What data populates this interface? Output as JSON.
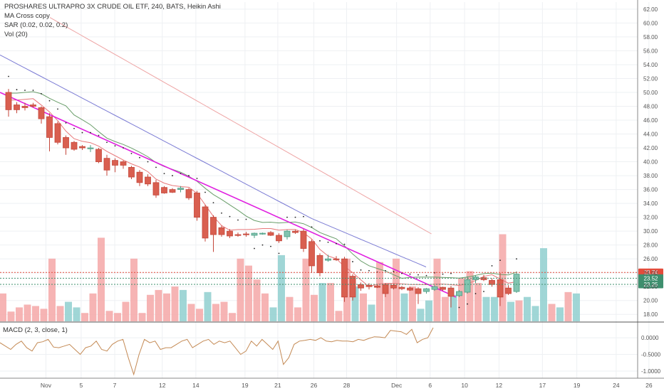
{
  "legend": {
    "title": "PROSHARES ULTRAPRO 3X CRUDE OIL ETF, 240, BATS, Heikin Ashi",
    "ma": "MA Cross copy",
    "sar": "SAR (0.02, 0.02, 0.2)",
    "vol": "Vol (20)"
  },
  "macd_label": "MACD (2, 3, close, 1)",
  "colors": {
    "up": "#4a9c82",
    "up_fill": "#82c4b0",
    "down": "#c4463a",
    "down_fill": "#d95f50",
    "vol_up": "#8fcfcf",
    "vol_down": "#f5a7a7",
    "ma_fast": "#e8787a",
    "ma_mid": "#6a9e6a",
    "ma_slow": "#7b7bd4",
    "ma_long": "#eea3a3",
    "trend": "#e020e0",
    "macd": "#c48a55",
    "badge_red": "#e34b3b",
    "badge_green": "#3e8f6e"
  },
  "chart_data": {
    "type": "candlestick",
    "y_ticks": [
      "62.00",
      "60.00",
      "58.00",
      "56.00",
      "54.00",
      "52.00",
      "50.00",
      "48.00",
      "46.00",
      "44.00",
      "42.00",
      "40.00",
      "38.00",
      "36.00",
      "34.00",
      "32.00",
      "30.00",
      "28.00",
      "26.00",
      "24.00",
      "22.00",
      "20.00",
      "18.00"
    ],
    "price_range": [
      17,
      62.5
    ],
    "x_labels": [
      {
        "label": "Nov",
        "i": 4.3
      },
      {
        "label": "5",
        "i": 8.6
      },
      {
        "label": "7",
        "i": 12.7
      },
      {
        "label": "12",
        "i": 18.5
      },
      {
        "label": "14",
        "i": 22.6
      },
      {
        "label": "19",
        "i": 28.6
      },
      {
        "label": "21",
        "i": 32.6
      },
      {
        "label": "26",
        "i": 37.0
      },
      {
        "label": "28",
        "i": 41.0
      },
      {
        "label": "Dec",
        "i": 47.1
      },
      {
        "label": "6",
        "i": 51.2
      },
      {
        "label": "10",
        "i": 55.4
      },
      {
        "label": "12",
        "i": 59.6
      },
      {
        "label": "17",
        "i": 64.9
      },
      {
        "label": "19",
        "i": 69.1
      },
      {
        "label": "24",
        "i": 73.9
      },
      {
        "label": "26",
        "i": 77.9
      }
    ],
    "candles": [
      {
        "o": 50.0,
        "h": 50.5,
        "l": 46.5,
        "c": 47.5
      },
      {
        "o": 48.2,
        "h": 48.6,
        "l": 47.0,
        "c": 47.5
      },
      {
        "o": 48.0,
        "h": 48.5,
        "l": 47.4,
        "c": 47.8
      },
      {
        "o": 48.2,
        "h": 48.5,
        "l": 47.8,
        "c": 48.0
      },
      {
        "o": 47.8,
        "h": 48.0,
        "l": 45.5,
        "c": 46.2
      },
      {
        "o": 46.5,
        "h": 47.0,
        "l": 41.5,
        "c": 43.5
      },
      {
        "o": 45.5,
        "h": 45.8,
        "l": 42.5,
        "c": 42.8
      },
      {
        "o": 43.5,
        "h": 43.8,
        "l": 41.0,
        "c": 42.0
      },
      {
        "o": 42.8,
        "h": 43.0,
        "l": 41.6,
        "c": 41.8
      },
      {
        "o": 42.2,
        "h": 42.4,
        "l": 41.7,
        "c": 42.0
      },
      {
        "o": 42.0,
        "h": 42.4,
        "l": 41.4,
        "c": 42.0
      },
      {
        "o": 41.8,
        "h": 42.0,
        "l": 39.8,
        "c": 40.0
      },
      {
        "o": 40.5,
        "h": 41.0,
        "l": 38.0,
        "c": 38.8
      },
      {
        "o": 40.2,
        "h": 40.5,
        "l": 38.5,
        "c": 39.5
      },
      {
        "o": 40.0,
        "h": 40.2,
        "l": 39.0,
        "c": 39.5
      },
      {
        "o": 39.2,
        "h": 39.4,
        "l": 37.5,
        "c": 37.8
      },
      {
        "o": 38.5,
        "h": 38.8,
        "l": 36.5,
        "c": 37.0
      },
      {
        "o": 37.8,
        "h": 38.2,
        "l": 36.5,
        "c": 36.8
      },
      {
        "o": 37.0,
        "h": 37.4,
        "l": 34.8,
        "c": 35.2
      },
      {
        "o": 36.3,
        "h": 36.5,
        "l": 35.4,
        "c": 35.5
      },
      {
        "o": 36.0,
        "h": 36.2,
        "l": 35.5,
        "c": 35.6
      },
      {
        "o": 36.0,
        "h": 36.5,
        "l": 35.6,
        "c": 36.2
      },
      {
        "o": 36.0,
        "h": 36.2,
        "l": 34.5,
        "c": 34.8
      },
      {
        "o": 35.5,
        "h": 35.8,
        "l": 31.5,
        "c": 32.0
      },
      {
        "o": 33.5,
        "h": 33.8,
        "l": 28.5,
        "c": 29.0
      },
      {
        "o": 32.0,
        "h": 32.3,
        "l": 27.0,
        "c": 29.5
      },
      {
        "o": 30.5,
        "h": 30.8,
        "l": 29.2,
        "c": 29.5
      },
      {
        "o": 30.0,
        "h": 30.3,
        "l": 29.0,
        "c": 29.3
      },
      {
        "o": 29.5,
        "h": 29.8,
        "l": 29.2,
        "c": 29.4
      },
      {
        "o": 29.6,
        "h": 29.9,
        "l": 29.2,
        "c": 29.5
      },
      {
        "o": 29.4,
        "h": 29.8,
        "l": 29.0,
        "c": 29.7
      },
      {
        "o": 29.6,
        "h": 29.8,
        "l": 29.5,
        "c": 29.7
      },
      {
        "o": 29.8,
        "h": 30.0,
        "l": 29.3,
        "c": 29.4
      },
      {
        "o": 29.4,
        "h": 29.7,
        "l": 28.3,
        "c": 28.6
      },
      {
        "o": 29.2,
        "h": 30.2,
        "l": 28.8,
        "c": 30.0
      },
      {
        "o": 30.0,
        "h": 30.2,
        "l": 29.6,
        "c": 29.8
      },
      {
        "o": 30.0,
        "h": 30.3,
        "l": 27.0,
        "c": 27.5
      },
      {
        "o": 28.5,
        "h": 28.8,
        "l": 24.0,
        "c": 25.0
      },
      {
        "o": 26.5,
        "h": 26.8,
        "l": 23.5,
        "c": 24.0
      },
      {
        "o": 25.8,
        "h": 26.6,
        "l": 25.6,
        "c": 26.0
      },
      {
        "o": 26.0,
        "h": 26.4,
        "l": 25.7,
        "c": 25.9
      },
      {
        "o": 26.0,
        "h": 26.3,
        "l": 19.8,
        "c": 20.5
      },
      {
        "o": 23.5,
        "h": 23.8,
        "l": 20.0,
        "c": 20.5
      },
      {
        "o": 22.3,
        "h": 22.6,
        "l": 21.4,
        "c": 21.8
      },
      {
        "o": 22.2,
        "h": 22.5,
        "l": 21.6,
        "c": 22.0
      },
      {
        "o": 22.1,
        "h": 22.3,
        "l": 21.8,
        "c": 21.9
      },
      {
        "o": 22.3,
        "h": 22.5,
        "l": 20.5,
        "c": 21.0
      },
      {
        "o": 22.2,
        "h": 22.4,
        "l": 21.6,
        "c": 21.8
      },
      {
        "o": 21.9,
        "h": 22.1,
        "l": 21.5,
        "c": 21.7
      },
      {
        "o": 21.8,
        "h": 22.0,
        "l": 21.4,
        "c": 21.5
      },
      {
        "o": 21.7,
        "h": 21.9,
        "l": 19.5,
        "c": 21.0
      },
      {
        "o": 21.3,
        "h": 21.8,
        "l": 21.0,
        "c": 21.7
      },
      {
        "o": 21.6,
        "h": 22.2,
        "l": 21.4,
        "c": 22.0
      },
      {
        "o": 21.9,
        "h": 22.0,
        "l": 21.4,
        "c": 21.6
      },
      {
        "o": 21.8,
        "h": 22.1,
        "l": 19.0,
        "c": 20.6
      },
      {
        "o": 20.7,
        "h": 21.5,
        "l": 20.5,
        "c": 21.3
      },
      {
        "o": 21.2,
        "h": 23.5,
        "l": 21.0,
        "c": 23.0
      },
      {
        "o": 23.0,
        "h": 23.6,
        "l": 22.5,
        "c": 23.4
      },
      {
        "o": 23.3,
        "h": 23.7,
        "l": 22.8,
        "c": 23.0
      },
      {
        "o": 22.9,
        "h": 23.2,
        "l": 22.0,
        "c": 22.3
      },
      {
        "o": 23.0,
        "h": 24.0,
        "l": 19.2,
        "c": 20.5
      },
      {
        "o": 21.8,
        "h": 22.2,
        "l": 20.8,
        "c": 21.0
      },
      {
        "o": 21.3,
        "h": 24.2,
        "l": 21.1,
        "c": 23.8
      }
    ],
    "volumes": [
      [
        0.4,
        "d"
      ],
      [
        0.14,
        "d"
      ],
      [
        0.2,
        "d"
      ],
      [
        0.24,
        "d"
      ],
      [
        0.22,
        "d"
      ],
      [
        0.18,
        "d"
      ],
      [
        0.9,
        "d"
      ],
      [
        0.22,
        "d"
      ],
      [
        0.28,
        "u"
      ],
      [
        0.2,
        "u"
      ],
      [
        0.12,
        "d"
      ],
      [
        0.4,
        "d"
      ],
      [
        1.2,
        "d"
      ],
      [
        0.15,
        "d"
      ],
      [
        0.12,
        "d"
      ],
      [
        0.28,
        "d"
      ],
      [
        0.9,
        "d"
      ],
      [
        0.12,
        "d"
      ],
      [
        0.38,
        "d"
      ],
      [
        0.45,
        "d"
      ],
      [
        0.4,
        "d"
      ],
      [
        0.5,
        "d"
      ],
      [
        0.45,
        "u"
      ],
      [
        0.25,
        "d"
      ],
      [
        0.18,
        "d"
      ],
      [
        0.42,
        "u"
      ],
      [
        0.25,
        "d"
      ],
      [
        0.28,
        "d"
      ],
      [
        0.12,
        "d"
      ],
      [
        0.9,
        "d"
      ],
      [
        0.8,
        "d"
      ],
      [
        0.6,
        "d"
      ],
      [
        0.4,
        "d"
      ],
      [
        0.2,
        "u"
      ],
      [
        0.95,
        "u"
      ],
      [
        0.35,
        "d"
      ],
      [
        0.2,
        "d"
      ],
      [
        0.9,
        "d"
      ],
      [
        0.38,
        "d"
      ],
      [
        0.55,
        "u"
      ],
      [
        0.55,
        "d"
      ],
      [
        0.15,
        "d"
      ],
      [
        0.9,
        "d"
      ],
      [
        0.5,
        "u"
      ],
      [
        0.4,
        "d"
      ],
      [
        0.24,
        "u"
      ],
      [
        0.85,
        "d"
      ],
      [
        0.55,
        "d"
      ],
      [
        0.9,
        "d"
      ],
      [
        0.4,
        "u"
      ],
      [
        0.5,
        "d"
      ],
      [
        0.18,
        "u"
      ],
      [
        0.3,
        "u"
      ],
      [
        0.9,
        "d"
      ],
      [
        0.35,
        "d"
      ],
      [
        0.38,
        "u"
      ],
      [
        0.62,
        "d"
      ],
      [
        0.72,
        "d"
      ],
      [
        0.55,
        "d"
      ],
      [
        0.35,
        "u"
      ],
      [
        0.35,
        "u"
      ],
      [
        1.25,
        "d"
      ],
      [
        0.28,
        "u"
      ],
      [
        0.3,
        "d"
      ],
      [
        0.35,
        "u"
      ],
      [
        0.22,
        "u"
      ],
      [
        1.05,
        "u"
      ],
      [
        0.25,
        "d"
      ],
      [
        0.2,
        "u"
      ],
      [
        0.42,
        "d"
      ],
      [
        0.4,
        "u"
      ]
    ],
    "macd_ticks": [
      "0.0000",
      "-0.5000",
      "-1.0000"
    ],
    "macd_range": [
      -1.15,
      0.3
    ],
    "macd": [
      -0.15,
      -0.25,
      -0.35,
      -0.2,
      -0.1,
      -0.3,
      -0.4,
      -0.15,
      -0.12,
      -0.05,
      -0.28,
      -0.3,
      -0.25,
      -0.2,
      -0.35,
      -0.5,
      -0.3,
      -0.25,
      -0.1,
      -0.35,
      -0.4,
      -0.2,
      -0.1,
      -0.05,
      -0.6,
      -1.1,
      -0.5,
      -0.05,
      -0.15,
      -0.1,
      -0.35,
      -0.3,
      -0.3,
      -0.2,
      -0.1,
      -0.05,
      -0.3,
      -0.2,
      -0.1,
      -0.05,
      -0.2,
      -0.1,
      -0.15,
      -0.1,
      -0.3,
      -0.5,
      -0.4,
      -0.1,
      -0.25,
      -0.05,
      -0.2,
      -0.35,
      -0.1,
      -0.8,
      -0.6,
      -0.2,
      -0.1,
      -0.08,
      -0.05,
      -0.08,
      0.0,
      -0.1,
      -0.12,
      -0.08,
      -0.1,
      -0.1,
      -0.12,
      -0.05,
      -0.08,
      -0.02,
      0.03,
      0.02,
      0.0,
      0.22,
      0.2,
      0.18,
      0.1,
      0.25,
      -0.15,
      -0.05,
      0.0,
      0.3
    ],
    "trendline": [
      [
        0,
        50.0
      ],
      [
        79.5,
        20.5
      ]
    ],
    "ma_long": [
      [
        31,
        48.0
      ],
      [
        40,
        46.0
      ],
      [
        50,
        44.0
      ],
      [
        60,
        42.0
      ],
      [
        70,
        40.0
      ],
      [
        80,
        38.0
      ],
      [
        90,
        36.0
      ],
      [
        100,
        34.0
      ],
      [
        110,
        32.5
      ],
      [
        120,
        31.0
      ],
      [
        130,
        30.0
      ],
      [
        138,
        29.5
      ]
    ],
    "badges": [
      {
        "label": "23.74",
        "price": 23.74,
        "color": "badge_red"
      },
      {
        "label": "23.52",
        "price": 23.52,
        "color": "badge_green"
      },
      {
        "label": "23.25",
        "price": 23.25,
        "color": "badge_green"
      }
    ]
  }
}
